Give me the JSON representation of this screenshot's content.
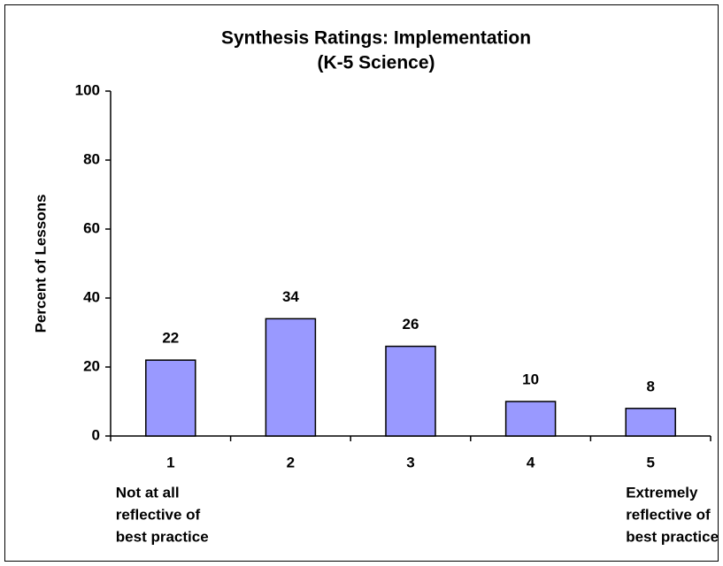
{
  "chart_data": {
    "type": "bar",
    "title": [
      "Synthesis Ratings: Implementation",
      "(K-5 Science)"
    ],
    "ylabel": "Percent of Lessons",
    "categories": [
      "1",
      "2",
      "3",
      "4",
      "5"
    ],
    "values": [
      22,
      34,
      26,
      10,
      8
    ],
    "color": "#9999ff",
    "ylim": [
      0,
      100
    ],
    "yticks": [
      0,
      20,
      40,
      60,
      80,
      100
    ],
    "grid": false,
    "annotations": [
      {
        "category": 0,
        "lines": [
          "Not at all",
          "reflective of",
          "best practice"
        ]
      },
      {
        "category": 4,
        "lines": [
          "Extremely",
          "reflective of",
          "best practice"
        ]
      }
    ]
  }
}
